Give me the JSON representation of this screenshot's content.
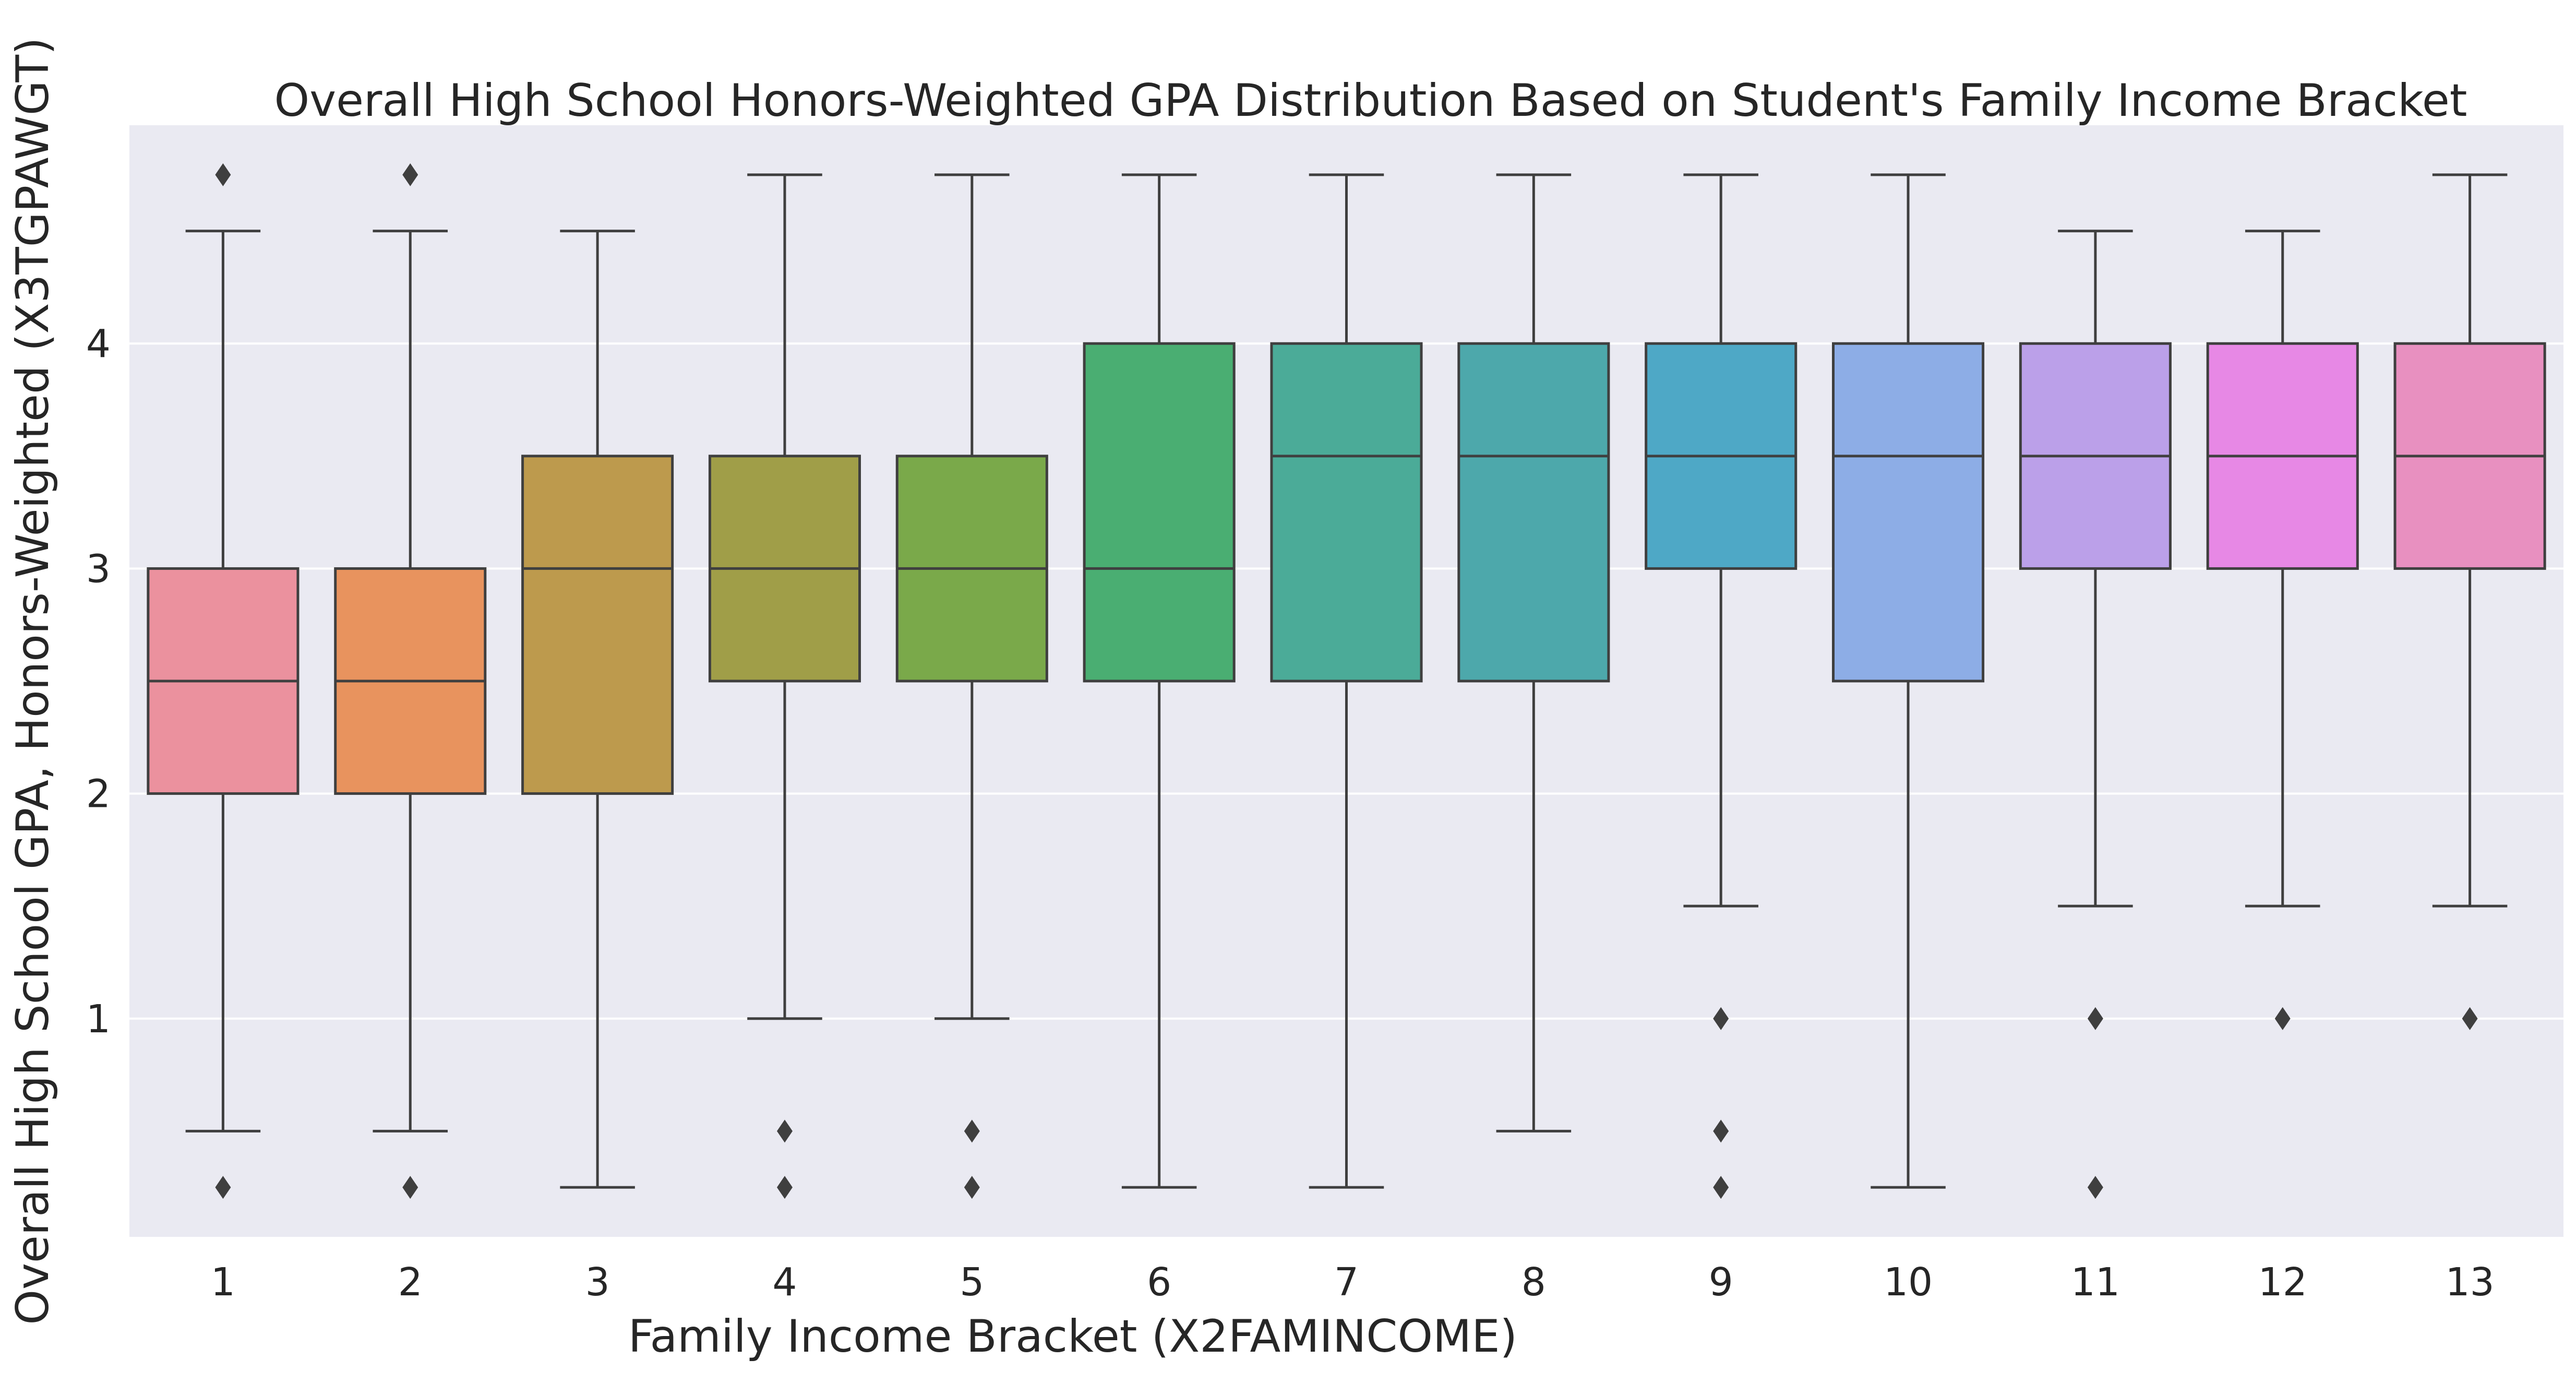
{
  "chart_data": {
    "type": "box",
    "title": "Overall High School Honors-Weighted GPA Distribution Based on Student's Family Income Bracket",
    "xlabel": "Family Income Bracket (X2FAMINCOME)",
    "ylabel": "Overall High School GPA, Honors-Weighted (X3TGPAWGT)",
    "categories": [
      "1",
      "2",
      "3",
      "4",
      "5",
      "6",
      "7",
      "8",
      "9",
      "10",
      "11",
      "12",
      "13"
    ],
    "yticks": [
      1,
      2,
      3,
      4
    ],
    "ylim": [
      0.03,
      4.97
    ],
    "grid": true,
    "colors": {
      "background": "#eaeaf2",
      "grid": "#ffffff",
      "line": "#3f3f3f"
    },
    "boxes": [
      {
        "category": "1",
        "whislo": 0.5,
        "q1": 2.0,
        "med": 2.5,
        "q3": 3.0,
        "whishi": 4.5,
        "fliers": [
          0.25,
          4.75
        ],
        "color": "#eb919e"
      },
      {
        "category": "2",
        "whislo": 0.5,
        "q1": 2.0,
        "med": 2.5,
        "q3": 3.0,
        "whishi": 4.5,
        "fliers": [
          0.25,
          4.75
        ],
        "color": "#e8935e"
      },
      {
        "category": "3",
        "whislo": 0.25,
        "q1": 2.0,
        "med": 3.0,
        "q3": 3.5,
        "whishi": 4.5,
        "fliers": [],
        "color": "#bd9a4d"
      },
      {
        "category": "4",
        "whislo": 1.0,
        "q1": 2.5,
        "med": 3.0,
        "q3": 3.5,
        "whishi": 4.75,
        "fliers": [
          0.25,
          0.5
        ],
        "color": "#a09e48"
      },
      {
        "category": "5",
        "whislo": 1.0,
        "q1": 2.5,
        "med": 3.0,
        "q3": 3.5,
        "whishi": 4.75,
        "fliers": [
          0.25,
          0.5
        ],
        "color": "#7aa94a"
      },
      {
        "category": "6",
        "whislo": 0.25,
        "q1": 2.5,
        "med": 3.0,
        "q3": 4.0,
        "whishi": 4.75,
        "fliers": [],
        "color": "#4aae72"
      },
      {
        "category": "7",
        "whislo": 0.25,
        "q1": 2.5,
        "med": 3.5,
        "q3": 4.0,
        "whishi": 4.75,
        "fliers": [],
        "color": "#4bab98"
      },
      {
        "category": "8",
        "whislo": 0.5,
        "q1": 2.5,
        "med": 3.5,
        "q3": 4.0,
        "whishi": 4.75,
        "fliers": [],
        "color": "#4da8ab"
      },
      {
        "category": "9",
        "whislo": 1.5,
        "q1": 3.0,
        "med": 3.5,
        "q3": 4.0,
        "whishi": 4.75,
        "fliers": [
          0.25,
          0.5,
          1.0
        ],
        "color": "#4ea8c6"
      },
      {
        "category": "10",
        "whislo": 0.25,
        "q1": 2.5,
        "med": 3.5,
        "q3": 4.0,
        "whishi": 4.75,
        "fliers": [],
        "color": "#8dade6"
      },
      {
        "category": "11",
        "whislo": 1.5,
        "q1": 3.0,
        "med": 3.5,
        "q3": 4.0,
        "whishi": 4.5,
        "fliers": [
          0.25,
          1.0
        ],
        "color": "#bba0e9"
      },
      {
        "category": "12",
        "whislo": 1.5,
        "q1": 3.0,
        "med": 3.5,
        "q3": 4.0,
        "whishi": 4.5,
        "fliers": [
          1.0
        ],
        "color": "#e788e5"
      },
      {
        "category": "13",
        "whislo": 1.5,
        "q1": 3.0,
        "med": 3.5,
        "q3": 4.0,
        "whishi": 4.75,
        "fliers": [
          1.0
        ],
        "color": "#e890c0"
      }
    ]
  }
}
